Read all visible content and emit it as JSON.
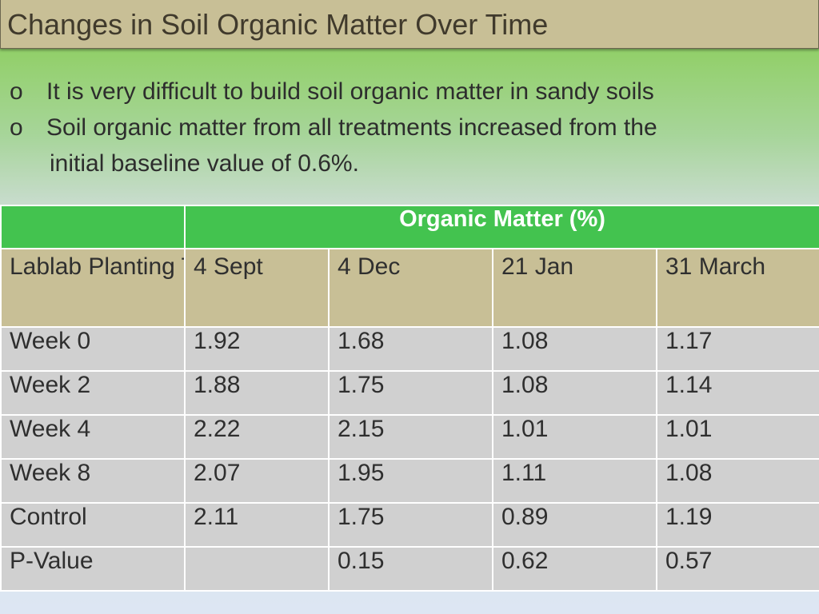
{
  "title": "Changes in Soil Organic Matter Over Time",
  "bullets": {
    "marker": "o",
    "items": [
      "It is very difficult to build soil organic matter in sandy soils",
      "Soil organic matter from all treatments increased from the"
    ],
    "continuation": "initial baseline value of 0.6%."
  },
  "table": {
    "group_header": "Organic Matter (%)",
    "row_header_label": "Lablab Planting Time",
    "columns": [
      "4 Sept",
      "4 Dec",
      "21 Jan",
      "31 March"
    ],
    "rows": [
      {
        "label": "Week 0",
        "values": [
          "1.92",
          "1.68",
          "1.08",
          "1.17"
        ]
      },
      {
        "label": "Week 2",
        "values": [
          "1.88",
          "1.75",
          "1.08",
          "1.14"
        ]
      },
      {
        "label": "Week 4",
        "values": [
          "2.22",
          "2.15",
          "1.01",
          "1.01"
        ]
      },
      {
        "label": "Week 8",
        "values": [
          "2.07",
          "1.95",
          "1.11",
          "1.08"
        ]
      },
      {
        "label": "Control",
        "values": [
          "2.11",
          "1.75",
          "0.89",
          "1.19"
        ]
      },
      {
        "label": "P-Value",
        "values": [
          "",
          "0.15",
          "0.62",
          "0.57"
        ]
      }
    ]
  }
}
